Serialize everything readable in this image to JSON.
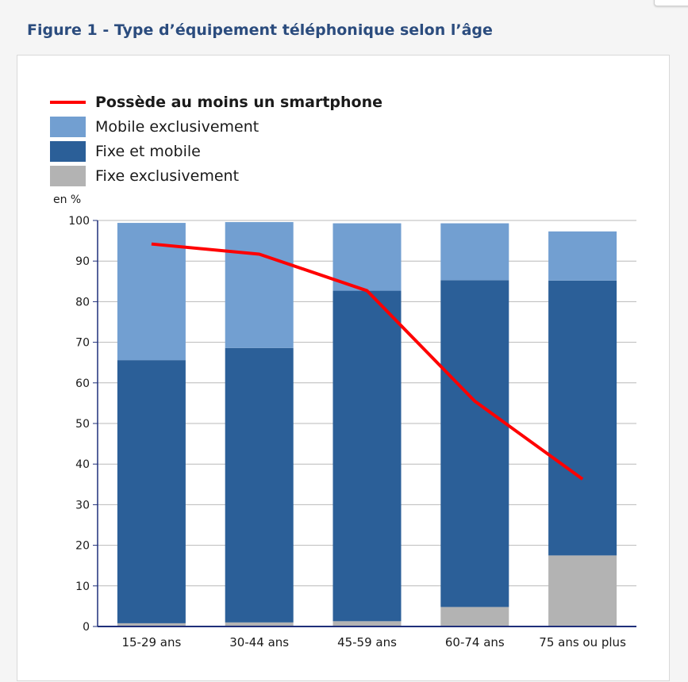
{
  "page": {
    "figure_title": "Figure 1 - Type d’équipement téléphonique selon l’âge"
  },
  "chart_data": {
    "type": "bar",
    "stacked": true,
    "categories": [
      "15-29 ans",
      "30-44 ans",
      "45-59 ans",
      "60-74 ans",
      "75 ans ou plus"
    ],
    "series": [
      {
        "name": "Fixe exclusivement",
        "kind": "bar",
        "color": "#b3b3b3",
        "values": [
          0.8,
          1.0,
          1.3,
          4.8,
          17.5
        ]
      },
      {
        "name": "Fixe et mobile",
        "kind": "bar",
        "color": "#2b5f98",
        "values": [
          64.8,
          67.6,
          81.4,
          80.5,
          67.7
        ]
      },
      {
        "name": "Mobile exclusivement",
        "kind": "bar",
        "color": "#729fd1",
        "values": [
          33.8,
          31.0,
          16.6,
          14.0,
          12.1
        ]
      },
      {
        "name": "Possède au moins un smartphone",
        "kind": "line",
        "color": "#ff0000",
        "values": [
          94.2,
          91.7,
          82.7,
          55.5,
          36.3
        ]
      }
    ],
    "legend": {
      "position": "top-left",
      "items": [
        {
          "label": "Possède au moins un smartphone",
          "marker": "line",
          "color": "#ff0000",
          "bold": true
        },
        {
          "label": "Mobile exclusivement",
          "marker": "box",
          "color": "#729fd1",
          "bold": false
        },
        {
          "label": "Fixe et mobile",
          "marker": "box",
          "color": "#2b5f98",
          "bold": false
        },
        {
          "label": "Fixe exclusivement",
          "marker": "box",
          "color": "#b3b3b3",
          "bold": false
        }
      ]
    },
    "y_unit_label": "en %",
    "ylim": [
      0,
      100
    ],
    "yticks": [
      0,
      10,
      20,
      30,
      40,
      50,
      60,
      70,
      80,
      90,
      100
    ],
    "grid": true,
    "axis_color": "#1f2f7a",
    "grid_color": "#b9b9b9"
  }
}
